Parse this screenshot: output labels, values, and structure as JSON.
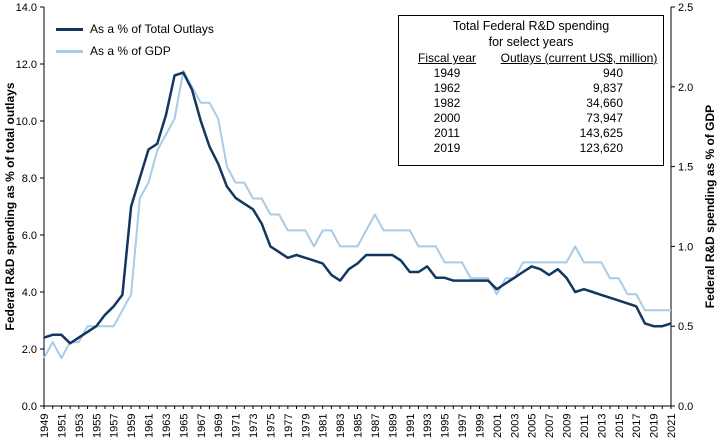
{
  "chart_data": {
    "type": "line",
    "x": [
      1949,
      1950,
      1951,
      1952,
      1953,
      1954,
      1955,
      1956,
      1957,
      1958,
      1959,
      1960,
      1961,
      1962,
      1963,
      1964,
      1965,
      1966,
      1967,
      1968,
      1969,
      1970,
      1971,
      1972,
      1973,
      1974,
      1975,
      1976,
      1977,
      1978,
      1979,
      1980,
      1981,
      1982,
      1983,
      1984,
      1985,
      1986,
      1987,
      1988,
      1989,
      1990,
      1991,
      1992,
      1993,
      1994,
      1995,
      1996,
      1997,
      1998,
      1999,
      2000,
      2001,
      2002,
      2003,
      2004,
      2005,
      2006,
      2007,
      2008,
      2009,
      2010,
      2011,
      2012,
      2013,
      2014,
      2015,
      2016,
      2017,
      2018,
      2019,
      2020,
      2021
    ],
    "xticks": [
      "1949",
      "1951",
      "1953",
      "1955",
      "1957",
      "1959",
      "1961",
      "1963",
      "1965",
      "1967",
      "1969",
      "1971",
      "1973",
      "1975",
      "1977",
      "1979",
      "1981",
      "1983",
      "1985",
      "1987",
      "1989",
      "1991",
      "1993",
      "1995",
      "1997",
      "1999",
      "2001",
      "2003",
      "2005",
      "2007",
      "2009",
      "2011",
      "2013",
      "2015",
      "2017",
      "2019",
      "2021"
    ],
    "series": [
      {
        "name": "As a % of Total Outlays",
        "axis": "left",
        "color": "#13375f",
        "values": [
          2.4,
          2.5,
          2.5,
          2.2,
          2.4,
          2.6,
          2.8,
          3.2,
          3.5,
          3.9,
          7.0,
          8.0,
          9.0,
          9.2,
          10.2,
          11.6,
          11.7,
          11.1,
          10.0,
          9.1,
          8.5,
          7.7,
          7.3,
          7.1,
          6.9,
          6.4,
          5.6,
          5.4,
          5.2,
          5.3,
          5.2,
          5.1,
          5.0,
          4.6,
          4.4,
          4.8,
          5.0,
          5.3,
          5.3,
          5.3,
          5.3,
          5.1,
          4.7,
          4.7,
          4.9,
          4.5,
          4.5,
          4.4,
          4.4,
          4.4,
          4.4,
          4.4,
          4.1,
          4.3,
          4.5,
          4.7,
          4.9,
          4.8,
          4.6,
          4.8,
          4.5,
          4.0,
          4.1,
          4.0,
          3.9,
          3.8,
          3.7,
          3.6,
          3.5,
          2.9,
          2.8,
          2.8,
          2.9
        ]
      },
      {
        "name": "As a % of GDP",
        "axis": "right",
        "color": "#a9cbe6",
        "values": [
          0.3,
          0.4,
          0.3,
          0.4,
          0.4,
          0.5,
          0.5,
          0.5,
          0.5,
          0.6,
          0.7,
          1.3,
          1.4,
          1.6,
          1.7,
          1.8,
          2.1,
          2.0,
          1.9,
          1.9,
          1.8,
          1.5,
          1.4,
          1.4,
          1.3,
          1.3,
          1.2,
          1.2,
          1.1,
          1.1,
          1.1,
          1.0,
          1.1,
          1.1,
          1.0,
          1.0,
          1.0,
          1.1,
          1.2,
          1.1,
          1.1,
          1.1,
          1.1,
          1.0,
          1.0,
          1.0,
          0.9,
          0.9,
          0.9,
          0.8,
          0.8,
          0.8,
          0.7,
          0.8,
          0.8,
          0.9,
          0.9,
          0.9,
          0.9,
          0.9,
          0.9,
          1.0,
          0.9,
          0.9,
          0.9,
          0.8,
          0.8,
          0.7,
          0.7,
          0.6,
          0.6,
          0.6,
          0.6
        ]
      }
    ],
    "ylabel_left": "Federal R&D spending as % of total outlays",
    "ylabel_right": "Federal R&D spending as % of GDP",
    "ylim_left": [
      0,
      14
    ],
    "ylim_right": [
      0,
      2.5
    ],
    "yticks_left": [
      "0.0",
      "2.0",
      "4.0",
      "6.0",
      "8.0",
      "10.0",
      "12.0",
      "14.0"
    ],
    "yticks_right": [
      "0.0",
      "0.5",
      "1.0",
      "1.5",
      "2.0",
      "2.5"
    ],
    "legend_position": "top-left",
    "grid": false
  },
  "table": {
    "title_line1": "Total Federal R&D spending",
    "title_line2": "for select years",
    "col1_header": "Fiscal year",
    "col2_header": "Outlays (current US$, million)",
    "rows": [
      {
        "year": "1949",
        "value": "940"
      },
      {
        "year": "1962",
        "value": "9,837"
      },
      {
        "year": "1982",
        "value": "34,660"
      },
      {
        "year": "2000",
        "value": "73,947"
      },
      {
        "year": "2011",
        "value": "143,625"
      },
      {
        "year": "2019",
        "value": "123,620"
      }
    ]
  }
}
